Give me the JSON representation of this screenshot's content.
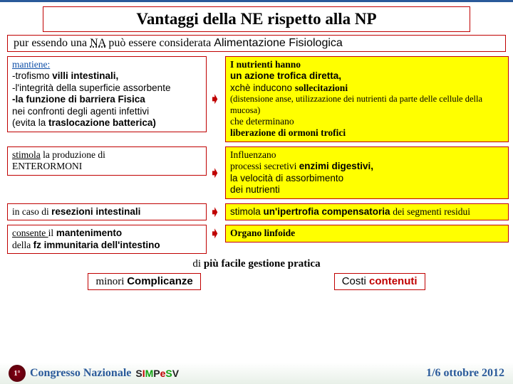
{
  "title": "Vantaggi della NE rispetto alla NP",
  "subtitle": {
    "pre": "pur essendo una ",
    "term": "NA",
    "mid": " può essere considerata ",
    "post": "Alimentazione Fisiologica"
  },
  "row1": {
    "left": {
      "l1": "mantiene:",
      "l2a": "-trofismo ",
      "l2b": "villi intestinali,",
      "l3": "-l'integrità della superficie assorbente",
      "l4": "-la funzione di barriera Fisica",
      "l5": "nei confronti degli agenti infettivi",
      "l6a": "(evita la ",
      "l6b": "traslocazione batterica)"
    },
    "right": {
      "l1": "I nutrienti hanno",
      "l2": "un azione trofica diretta,",
      "l3a": "xchè inducono ",
      "l3b": "sollecitazioni",
      "l4": "(distensione anse, utilizzazione dei nutrienti da parte delle cellule della mucosa)",
      "l5": "che determinano",
      "l6": "liberazione di ormoni trofici"
    }
  },
  "row2": {
    "left": {
      "l1a": "stimola",
      "l1b": " la produzione di",
      "l2": "ENTERORMONI"
    },
    "right": {
      "l1": "Influenzano",
      "l2a": "processi secretivi ",
      "l2b": "enzimi digestivi,",
      "l3a": "la ",
      "l3b": "velocità di assorbimento",
      "l4": "dei nutrienti"
    }
  },
  "row3": {
    "left": {
      "l1a": "in caso di ",
      "l1b": "resezioni intestinali"
    },
    "right": {
      "l1a": "stimola ",
      "l1b": "un'ipertrofia ",
      "l1c": "compensatoria ",
      "l1d": "dei segmenti residui"
    }
  },
  "row4": {
    "left": {
      "l1a": "consente ",
      "l1b": "il",
      "l1c": " mantenimento",
      "l2a": "della ",
      "l2b": "fz immunitaria dell'intestino"
    },
    "right": {
      "l1": "Organo linfoide"
    }
  },
  "bottom": {
    "line1a": "di",
    "line1b": " più facile gestione pratica",
    "b1a": "minori ",
    "b1b": "Complicanze",
    "b2a": "Costi ",
    "b2b": "contenuti"
  },
  "footer": {
    "ord": "1°",
    "cong": "Congresso Nazionale",
    "date": "1/6 ottobre 2012"
  }
}
